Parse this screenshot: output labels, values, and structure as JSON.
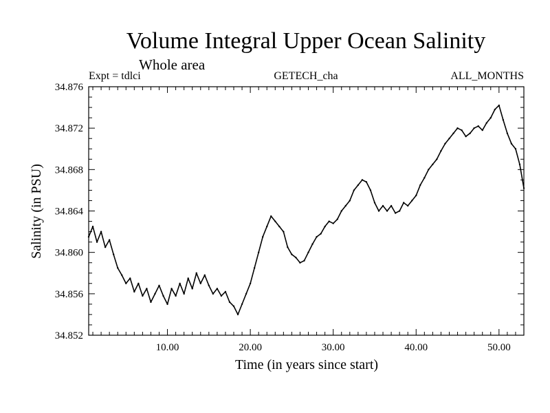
{
  "chart_data": {
    "type": "line",
    "title": "Volume Integral Upper Ocean Salinity",
    "subtitle": "Whole area",
    "header_left": "Expt = tdlci",
    "header_center": "GETECH_cha",
    "header_right": "ALL_MONTHS",
    "xlabel": "Time (in years since start)",
    "ylabel": "Salinity (in PSU)",
    "xlim": [
      0.5,
      53.0
    ],
    "ylim": [
      34.852,
      34.876
    ],
    "xticks": [
      10,
      20,
      30,
      40,
      50
    ],
    "xtick_labels": [
      "10.00",
      "20.00",
      "30.00",
      "40.00",
      "50.00"
    ],
    "yticks": [
      34.852,
      34.856,
      34.86,
      34.864,
      34.868,
      34.872,
      34.876
    ],
    "ytick_labels": [
      "34.852",
      "34.856",
      "34.860",
      "34.864",
      "34.868",
      "34.872",
      "34.876"
    ],
    "series": [
      {
        "name": "Salinity",
        "x": [
          0.5,
          1.0,
          1.5,
          2.0,
          2.5,
          3.0,
          3.5,
          4.0,
          4.5,
          5.0,
          5.5,
          6.0,
          6.5,
          7.0,
          7.5,
          8.0,
          8.5,
          9.0,
          9.5,
          10.0,
          10.5,
          11.0,
          11.5,
          12.0,
          12.5,
          13.0,
          13.5,
          14.0,
          14.5,
          15.0,
          15.5,
          16.0,
          16.5,
          17.0,
          17.5,
          18.0,
          18.5,
          19.0,
          19.5,
          20.0,
          20.5,
          21.0,
          21.5,
          22.0,
          22.5,
          23.0,
          23.5,
          24.0,
          24.5,
          25.0,
          25.5,
          26.0,
          26.5,
          27.0,
          27.5,
          28.0,
          28.5,
          29.0,
          29.5,
          30.0,
          30.5,
          31.0,
          31.5,
          32.0,
          32.5,
          33.0,
          33.5,
          34.0,
          34.5,
          35.0,
          35.5,
          36.0,
          36.5,
          37.0,
          37.5,
          38.0,
          38.5,
          39.0,
          39.5,
          40.0,
          40.5,
          41.0,
          41.5,
          42.0,
          42.5,
          43.0,
          43.5,
          44.0,
          44.5,
          45.0,
          45.5,
          46.0,
          46.5,
          47.0,
          47.5,
          48.0,
          48.5,
          49.0,
          49.5,
          50.0,
          50.5,
          51.0,
          51.5,
          52.0,
          52.5,
          53.0
        ],
        "values": [
          34.8615,
          34.8625,
          34.861,
          34.862,
          34.8605,
          34.8612,
          34.8598,
          34.8585,
          34.8578,
          34.857,
          34.8575,
          34.8562,
          34.857,
          34.8558,
          34.8565,
          34.8552,
          34.856,
          34.8568,
          34.8558,
          34.855,
          34.8565,
          34.8558,
          34.857,
          34.856,
          34.8575,
          34.8565,
          34.858,
          34.857,
          34.8578,
          34.8568,
          34.856,
          34.8565,
          34.8558,
          34.8562,
          34.8552,
          34.8548,
          34.854,
          34.855,
          34.856,
          34.857,
          34.8585,
          34.86,
          34.8615,
          34.8625,
          34.8635,
          34.863,
          34.8625,
          34.862,
          34.8605,
          34.8598,
          34.8595,
          34.859,
          34.8592,
          34.86,
          34.8608,
          34.8615,
          34.8618,
          34.8625,
          34.863,
          34.8628,
          34.8632,
          34.864,
          34.8645,
          34.865,
          34.866,
          34.8665,
          34.867,
          34.8668,
          34.866,
          34.8648,
          34.864,
          34.8645,
          34.864,
          34.8645,
          34.8638,
          34.864,
          34.8648,
          34.8645,
          34.865,
          34.8655,
          34.8665,
          34.8672,
          34.868,
          34.8685,
          34.869,
          34.8698,
          34.8705,
          34.871,
          34.8715,
          34.872,
          34.8718,
          34.8712,
          34.8715,
          34.872,
          34.8722,
          34.8718,
          34.8725,
          34.873,
          34.8738,
          34.8742,
          34.8728,
          34.8715,
          34.8705,
          34.87,
          34.8685,
          34.8662
        ],
        "color": "#000000"
      }
    ]
  }
}
